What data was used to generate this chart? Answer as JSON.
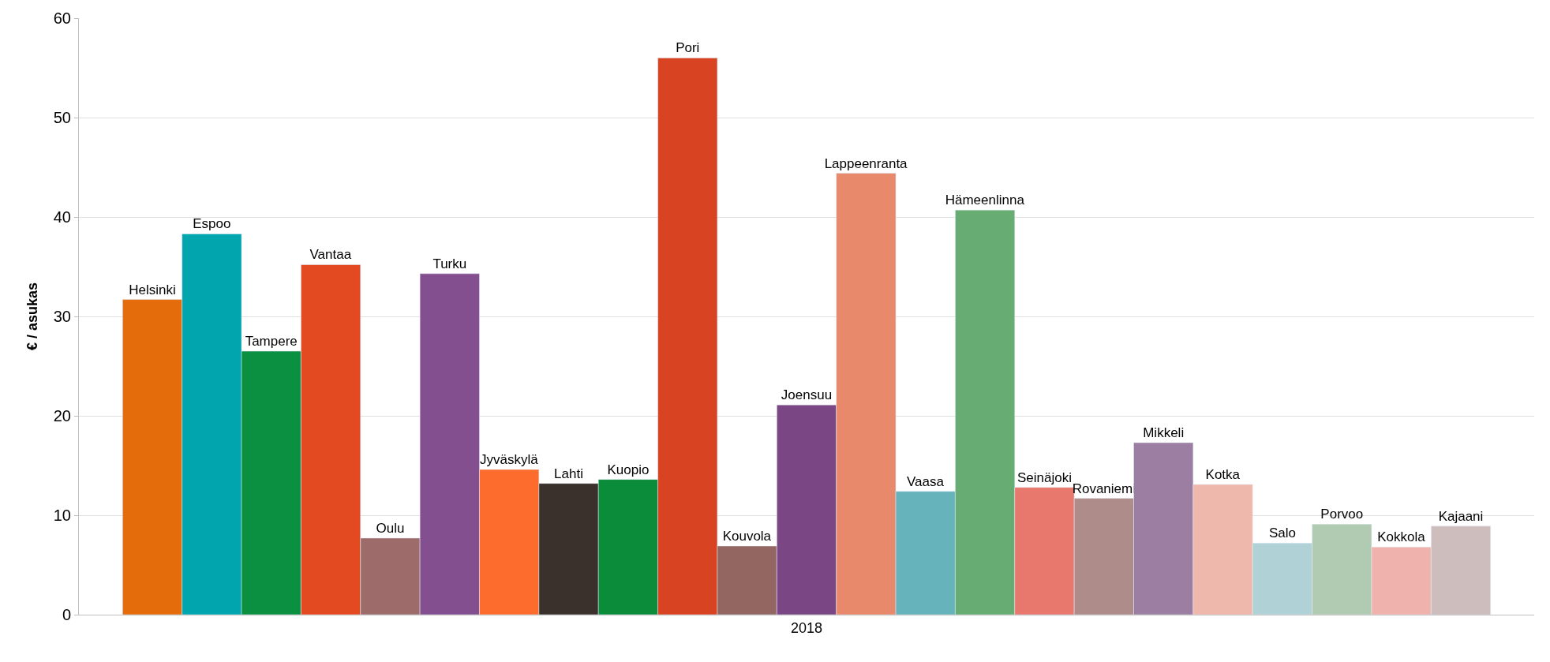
{
  "chart_data": {
    "type": "bar",
    "categories": [
      "2018"
    ],
    "ylabel": "€ / asukas",
    "ylim": [
      0,
      60
    ],
    "yticks": [
      0,
      10,
      20,
      30,
      40,
      50,
      60
    ],
    "grid": "y",
    "legend": false,
    "series": [
      {
        "name": "Helsinki",
        "color": "#e46c0a",
        "values": [
          31.7
        ]
      },
      {
        "name": "Espoo",
        "color": "#00a5ae",
        "values": [
          38.3
        ]
      },
      {
        "name": "Tampere",
        "color": "#0a9040",
        "values": [
          26.5
        ]
      },
      {
        "name": "Vantaa",
        "color": "#e44a22",
        "values": [
          35.2
        ]
      },
      {
        "name": "Oulu",
        "color": "#9e6b6b",
        "values": [
          7.7
        ]
      },
      {
        "name": "Turku",
        "color": "#844f8e",
        "values": [
          34.3
        ]
      },
      {
        "name": "Jyväskylä",
        "color": "#fd6c2c",
        "values": [
          14.6
        ]
      },
      {
        "name": "Lahti",
        "color": "#3a312d",
        "values": [
          13.2
        ]
      },
      {
        "name": "Kuopio",
        "color": "#0a8c3a",
        "values": [
          13.6
        ]
      },
      {
        "name": "Pori",
        "color": "#d84322",
        "values": [
          56.0
        ]
      },
      {
        "name": "Kouvola",
        "color": "#936661",
        "values": [
          6.9
        ]
      },
      {
        "name": "Joensuu",
        "color": "#7a4784",
        "values": [
          21.1
        ]
      },
      {
        "name": "Lappeenranta",
        "color": "#e8896c",
        "values": [
          44.4
        ]
      },
      {
        "name": "Vaasa",
        "color": "#67b3bb",
        "values": [
          12.4
        ]
      },
      {
        "name": "Hämeenlinna",
        "color": "#67ac72",
        "values": [
          40.7
        ]
      },
      {
        "name": "Seinäjoki",
        "color": "#e8776d",
        "values": [
          12.8
        ]
      },
      {
        "name": "Rovaniemi",
        "color": "#ae8c89",
        "values": [
          11.7
        ]
      },
      {
        "name": "Mikkeli",
        "color": "#9c7ea3",
        "values": [
          17.3
        ]
      },
      {
        "name": "Kotka",
        "color": "#eeb8ac",
        "values": [
          13.1
        ]
      },
      {
        "name": "Salo",
        "color": "#b0d2d6",
        "values": [
          7.2
        ]
      },
      {
        "name": "Porvoo",
        "color": "#b0cbb1",
        "values": [
          9.1
        ]
      },
      {
        "name": "Kokkola",
        "color": "#f0b2ad",
        "values": [
          6.8
        ]
      },
      {
        "name": "Kajaani",
        "color": "#cdbdbc",
        "values": [
          8.9
        ]
      }
    ]
  }
}
